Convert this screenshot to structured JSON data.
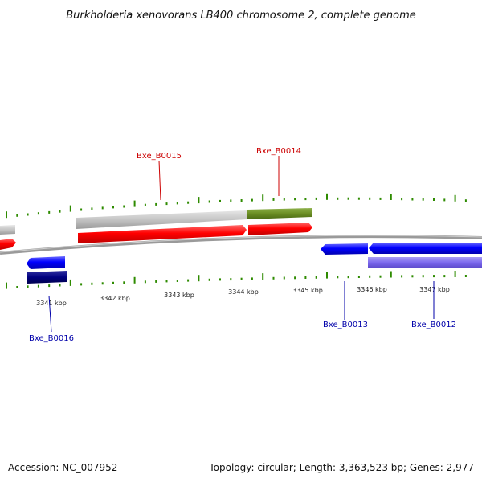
{
  "title": "Burkholderia xenovorans LB400 chromosome 2, complete genome",
  "footer": {
    "accession": "Accession: NC_007952",
    "summary": "Topology: circular; Length: 3,363,523 bp; Genes: 2,977"
  },
  "kbp_labels": [
    "3341 kbp",
    "3342 kbp",
    "3343 kbp",
    "3344 kbp",
    "3345 kbp",
    "3346 kbp",
    "3347 kbp"
  ],
  "gene_labels": {
    "top": [
      "Bxe_B0015",
      "Bxe_B0014"
    ],
    "bottom": [
      "Bxe_B0016",
      "Bxe_B0013",
      "Bxe_B0012"
    ]
  },
  "colors": {
    "label_top": "#cc0000",
    "label_bottom": "#0000aa",
    "tick": "#2e8b00",
    "cds_forward": "#ff0000",
    "cds_reverse": "#0000ff",
    "gene_grey": "#bdbdbd",
    "gene_green": "#6b8e23",
    "gene_navy": "#000080",
    "gene_purple": "#7b68ee",
    "backbone": "#808080"
  }
}
